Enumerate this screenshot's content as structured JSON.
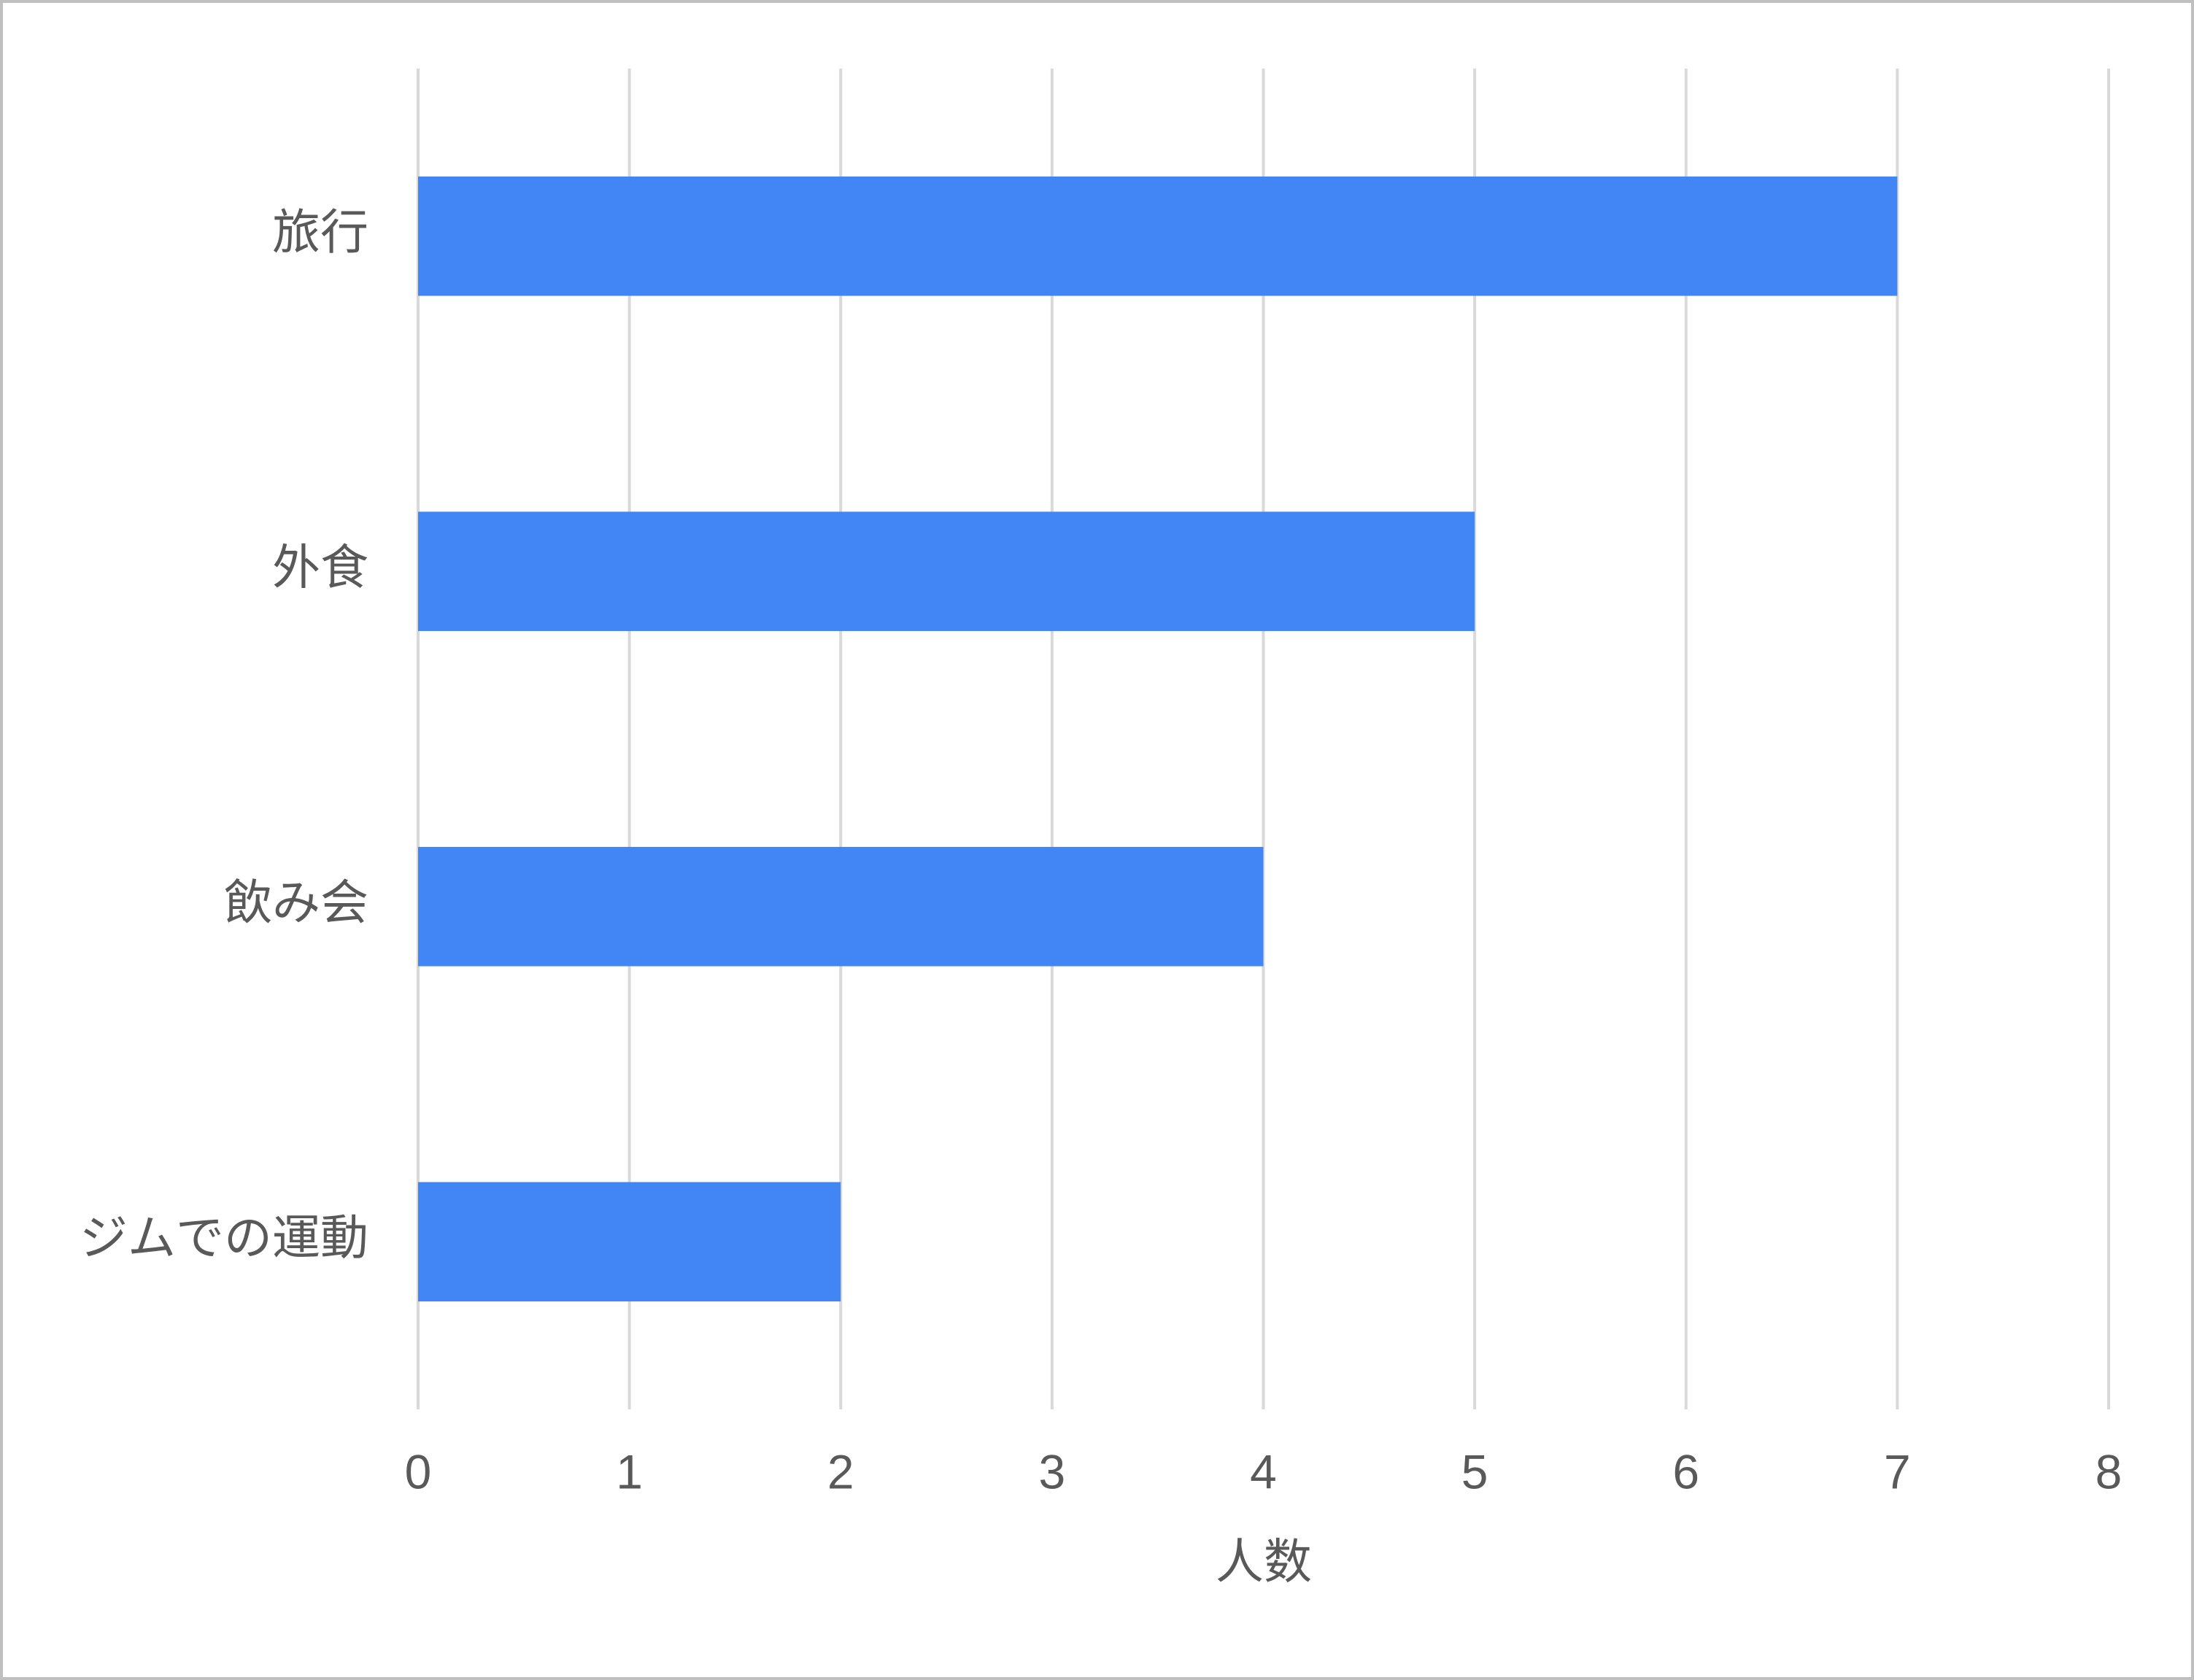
{
  "chart_data": {
    "type": "bar",
    "orientation": "horizontal",
    "categories": [
      "旅行",
      "外食",
      "飲み会",
      "ジムでの運動"
    ],
    "values": [
      7,
      5,
      4,
      2
    ],
    "color": "#4285f4",
    "xlim": [
      0,
      8
    ],
    "xticks": [
      0,
      1,
      2,
      3,
      4,
      5,
      6,
      7,
      8
    ],
    "x_label": "人数",
    "grid": true
  }
}
